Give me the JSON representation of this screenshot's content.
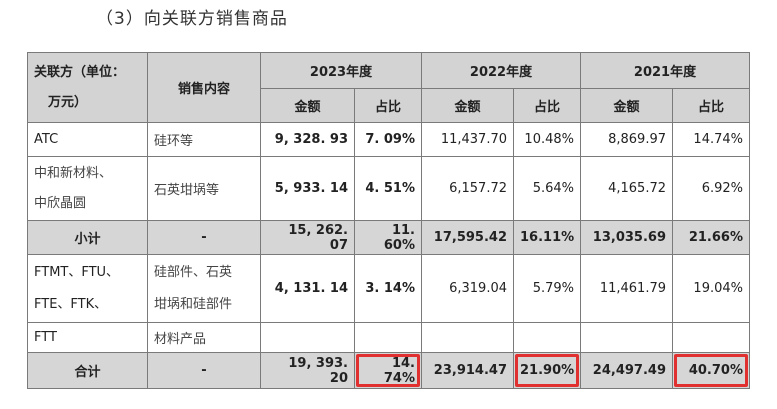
{
  "heading": "（3）向关联方销售商品",
  "header": {
    "party_line1": "关联方（单位：",
    "party_line2": "万元）",
    "content": "销售内容",
    "years": [
      "2023年度",
      "2022年度",
      "2021年度"
    ],
    "amount": "金额",
    "ratio": "占比"
  },
  "rows": [
    {
      "party": [
        "ATC"
      ],
      "content": [
        "硅环等"
      ],
      "v": [
        "9, 328. 93",
        "7. 09%",
        "11,437.70",
        "10.48%",
        "8,869.97",
        "14.74%"
      ]
    },
    {
      "party": [
        "中和新材料、",
        "中欣晶圆"
      ],
      "content": [
        "石英坩埚等"
      ],
      "v": [
        "5, 933. 14",
        "4. 51%",
        "6,157.72",
        "5.64%",
        "4,165.72",
        "6.92%"
      ]
    },
    {
      "party": [
        "小计"
      ],
      "content": [
        "-"
      ],
      "v": [
        "15, 262. 07",
        "11. 60%",
        "17,595.42",
        "16.11%",
        "13,035.69",
        "21.66%"
      ]
    },
    {
      "party": [
        "FTMT、FTU、",
        "FTE、FTK、"
      ],
      "content": [
        "硅部件、石英",
        "坩埚和硅部件"
      ],
      "v": [
        "4, 131. 14",
        "3. 14%",
        "6,319.04",
        "5.79%",
        "11,461.79",
        "19.04%"
      ]
    },
    {
      "party": [
        "FTT"
      ],
      "content": [
        "材料产品"
      ],
      "v": [
        "",
        "",
        "",
        "",
        "",
        ""
      ]
    },
    {
      "party": [
        "合计"
      ],
      "content": [
        "-"
      ],
      "v": [
        "19, 393. 20",
        "14. 74%",
        "23,914.47",
        "21.90%",
        "24,497.49",
        "40.70%"
      ]
    }
  ],
  "colors": {
    "header_bg": "#d3d3d3",
    "highlight_border": "#e03030"
  }
}
